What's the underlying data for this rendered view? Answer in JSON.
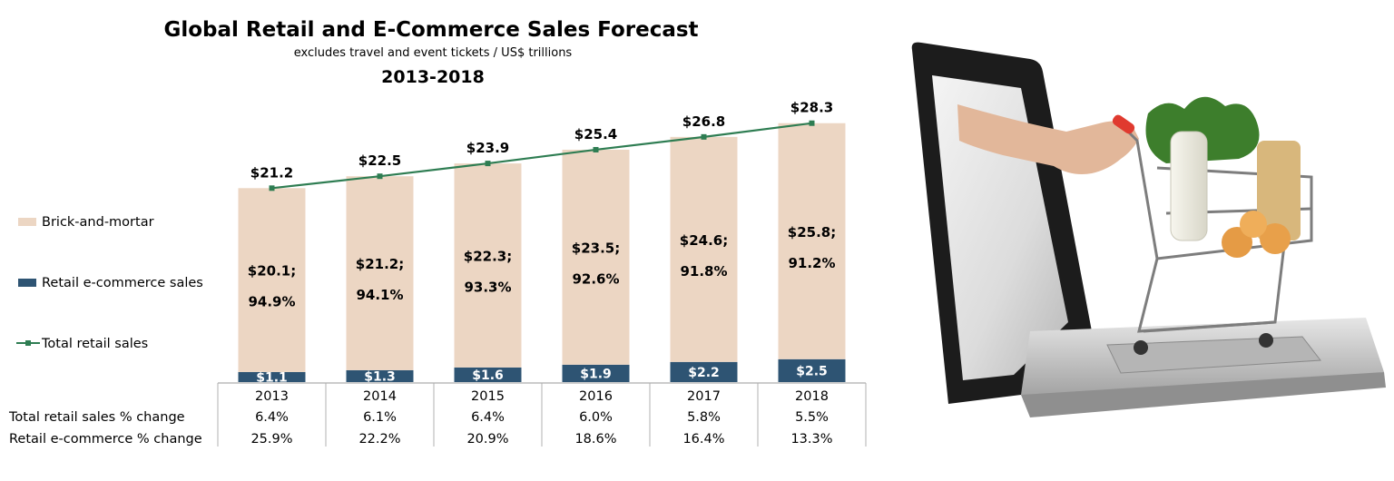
{
  "chart_data": {
    "type": "bar",
    "stacked": true,
    "title": "Global Retail and E-Commerce Sales Forecast",
    "subtitle": "excludes travel and event tickets / US$ trillions",
    "period": "2013-2018",
    "categories": [
      "2013",
      "2014",
      "2015",
      "2016",
      "2017",
      "2018"
    ],
    "series": [
      {
        "name": "Retail e-commerce sales",
        "kind": "bar",
        "color": "#2e5473",
        "values": [
          1.1,
          1.3,
          1.6,
          1.9,
          2.2,
          2.5
        ],
        "labels": [
          "$1.1",
          "$1.3",
          "$1.6",
          "$1.9",
          "$2.2",
          "$2.5"
        ]
      },
      {
        "name": "Brick-and-mortar",
        "kind": "bar",
        "color": "#ecd6c3",
        "values": [
          20.1,
          21.2,
          22.3,
          23.5,
          24.6,
          25.8
        ],
        "labels": [
          "$20.1;",
          "$21.2;",
          "$22.3;",
          "$23.5;",
          "$24.6;",
          "$25.8;"
        ],
        "share_labels": [
          "94.9%",
          "94.1%",
          "93.3%",
          "92.6%",
          "91.8%",
          "91.2%"
        ]
      },
      {
        "name": "Total retail sales",
        "kind": "line",
        "color": "#2e7d52",
        "values": [
          21.2,
          22.5,
          23.9,
          25.4,
          26.8,
          28.3
        ],
        "labels": [
          "$21.2",
          "$22.5",
          "$23.9",
          "$25.4",
          "$26.8",
          "$28.3"
        ]
      }
    ],
    "ylim": [
      0,
      30
    ],
    "legend_position": "left",
    "grid": false,
    "table_rows": [
      {
        "label": "Total retail sales % change",
        "values": [
          "6.4%",
          "6.1%",
          "6.4%",
          "6.0%",
          "5.8%",
          "5.5%"
        ]
      },
      {
        "label": "Retail e-commerce % change",
        "values": [
          "25.9%",
          "22.2%",
          "20.9%",
          "18.6%",
          "16.4%",
          "13.3%"
        ]
      }
    ]
  },
  "illustration": {
    "icon": "laptop-shopping-cart-illustration"
  }
}
